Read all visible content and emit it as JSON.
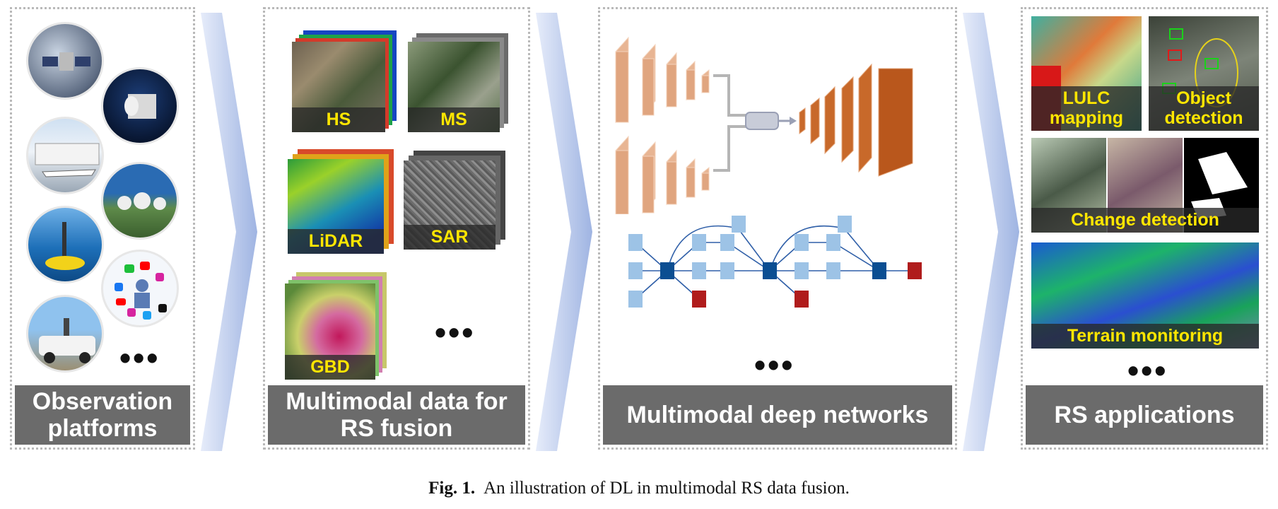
{
  "panels": {
    "platforms": {
      "title": "Observation\nplatforms",
      "more": "•••"
    },
    "data": {
      "title": "Multimodal data for\nRS fusion",
      "tiles": [
        "HS",
        "MS",
        "LiDAR",
        "SAR",
        "GBD"
      ],
      "more": "•••"
    },
    "networks": {
      "title": "Multimodal deep networks",
      "more": "•••"
    },
    "applications": {
      "title": "RS applications",
      "tiles": [
        "LULC\nmapping",
        "Object\ndetection",
        "Change detection",
        "Terrain monitoring"
      ],
      "more": "•••"
    }
  },
  "caption": {
    "label": "Fig. 1.",
    "text": "An illustration of DL in multimodal RS data fusion."
  },
  "colors": {
    "title_bg": "#6b6b6b",
    "label_text": "#ffe600",
    "encoder": "#e8b593",
    "decoder": "#c8692a",
    "node_light": "#9dc3e6",
    "node_dark": "#0b4e92",
    "node_red": "#b01c1c",
    "arrow": "#a9bde6"
  }
}
